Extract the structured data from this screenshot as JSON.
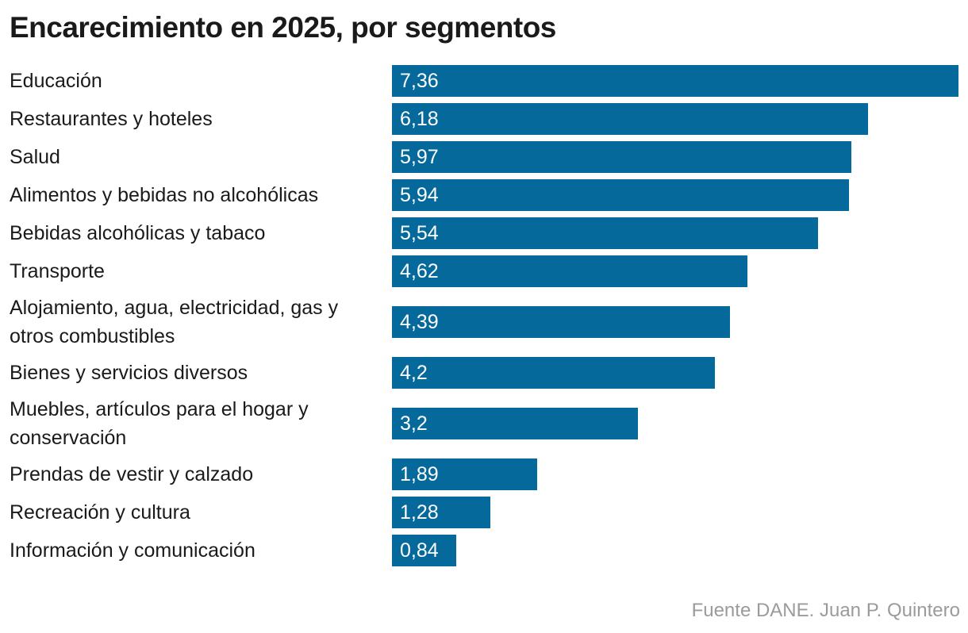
{
  "chart_data": {
    "type": "bar",
    "orientation": "horizontal",
    "title": "Encarecimiento en 2025, por segmentos",
    "categories": [
      "Educación",
      "Restaurantes y hoteles",
      "Salud",
      "Alimentos y bebidas no alcohólicas",
      "Bebidas alcohólicas y tabaco",
      "Transporte",
      "Alojamiento, agua, electricidad, gas y otros combustibles",
      "Bienes y servicios diversos",
      "Muebles, artículos para el hogar y conservación",
      "Prendas de vestir y calzado",
      "Recreación y cultura",
      "Información y comunicación"
    ],
    "values": [
      7.36,
      6.18,
      5.97,
      5.94,
      5.54,
      4.62,
      4.39,
      4.2,
      3.2,
      1.89,
      1.28,
      0.84
    ],
    "data_labels": [
      "7,36",
      "6,18",
      "5,97",
      "5,94",
      "5,54",
      "4,62",
      "4,39",
      "4,2",
      "3,2",
      "1,89",
      "1,28",
      "0,84"
    ],
    "xlim": [
      0,
      7.36
    ],
    "grid": false,
    "color": "#05699b"
  },
  "source": "Fuente DANE. Juan P. Quintero"
}
